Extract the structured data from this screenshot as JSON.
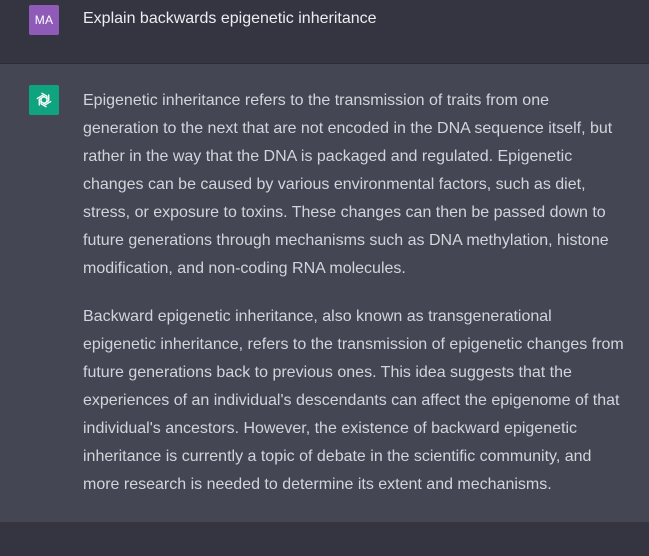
{
  "colors": {
    "page_bg": "#343541",
    "assistant_bg": "#444654",
    "user_avatar": "#8e5cb8",
    "assistant_avatar": "#10a37f",
    "text": "#d1d5db"
  },
  "user_message": {
    "avatar_initials": "MA",
    "text": "Explain backwards epigenetic inheritance"
  },
  "assistant_message": {
    "avatar_icon": "openai-logo-icon",
    "paragraphs": [
      {
        "lines": [
          "Epigenetic inheritance refers to the transmission of traits from one",
          "generation to the next that are not encoded in the DNA sequence itself, but",
          "rather in the way that the DNA is packaged and regulated. Epigenetic",
          "changes can be caused by various environmental factors, such as diet,",
          "stress, or exposure to toxins. These changes can then be passed down to",
          "future generations through mechanisms such as DNA methylation, histone",
          "modification, and non-coding RNA molecules."
        ]
      },
      {
        "lines": [
          "Backward epigenetic inheritance, also known as transgenerational",
          "epigenetic inheritance, refers to the transmission of epigenetic changes from",
          "future generations back to previous ones. This idea suggests that the",
          "experiences of an individual's descendants can affect the epigenome of that",
          "individual's ancestors. However, the existence of backward epigenetic",
          "inheritance is currently a topic of debate in the scientific community, and",
          "more research is needed to determine its extent and mechanisms."
        ]
      }
    ]
  }
}
